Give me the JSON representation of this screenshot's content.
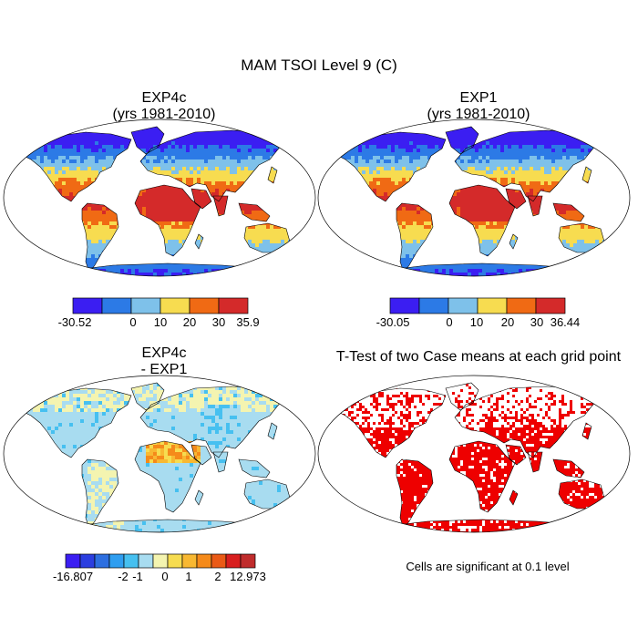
{
  "figure": {
    "title": "MAM TSOI Level 9 (C)"
  },
  "panels": [
    {
      "id": "exp4c",
      "title_lines": [
        "EXP4c",
        "(yrs 1981-2010)"
      ],
      "colorbar": {
        "colors": [
          "#3b1ef2",
          "#2c7ae6",
          "#7ec1ea",
          "#f7dc50",
          "#f06a14",
          "#d42a2a"
        ],
        "tick_labels": [
          "-30.52",
          "0",
          "10",
          "20",
          "30",
          "35.9"
        ]
      }
    },
    {
      "id": "exp1",
      "title_lines": [
        "EXP1",
        "(yrs 1981-2010)"
      ],
      "colorbar": {
        "colors": [
          "#3b1ef2",
          "#2c7ae6",
          "#7ec1ea",
          "#f7dc50",
          "#f06a14",
          "#d42a2a"
        ],
        "tick_labels": [
          "-30.05",
          "0",
          "10",
          "20",
          "30",
          "36.44"
        ]
      }
    },
    {
      "id": "diff",
      "title_lines": [
        "EXP4c",
        "- EXP1"
      ],
      "colorbar": {
        "colors": [
          "#3b1ef2",
          "#2b3ee0",
          "#2d6fe0",
          "#2f9ef0",
          "#46c0f0",
          "#a8dcf0",
          "#f4f4b0",
          "#f6dc50",
          "#f8b832",
          "#f58a1a",
          "#ea5a16",
          "#d81f1f",
          "#c02c2c"
        ],
        "tick_labels": [
          "-16.807",
          "-2",
          "-1",
          "0",
          "1",
          "2",
          "12.973"
        ]
      }
    },
    {
      "id": "ttest",
      "title_lines": [
        "T-Test of two Case means at each grid point"
      ],
      "footnote": "Cells are significant at 0.1 level",
      "significant_color": "#ee0000"
    }
  ]
}
